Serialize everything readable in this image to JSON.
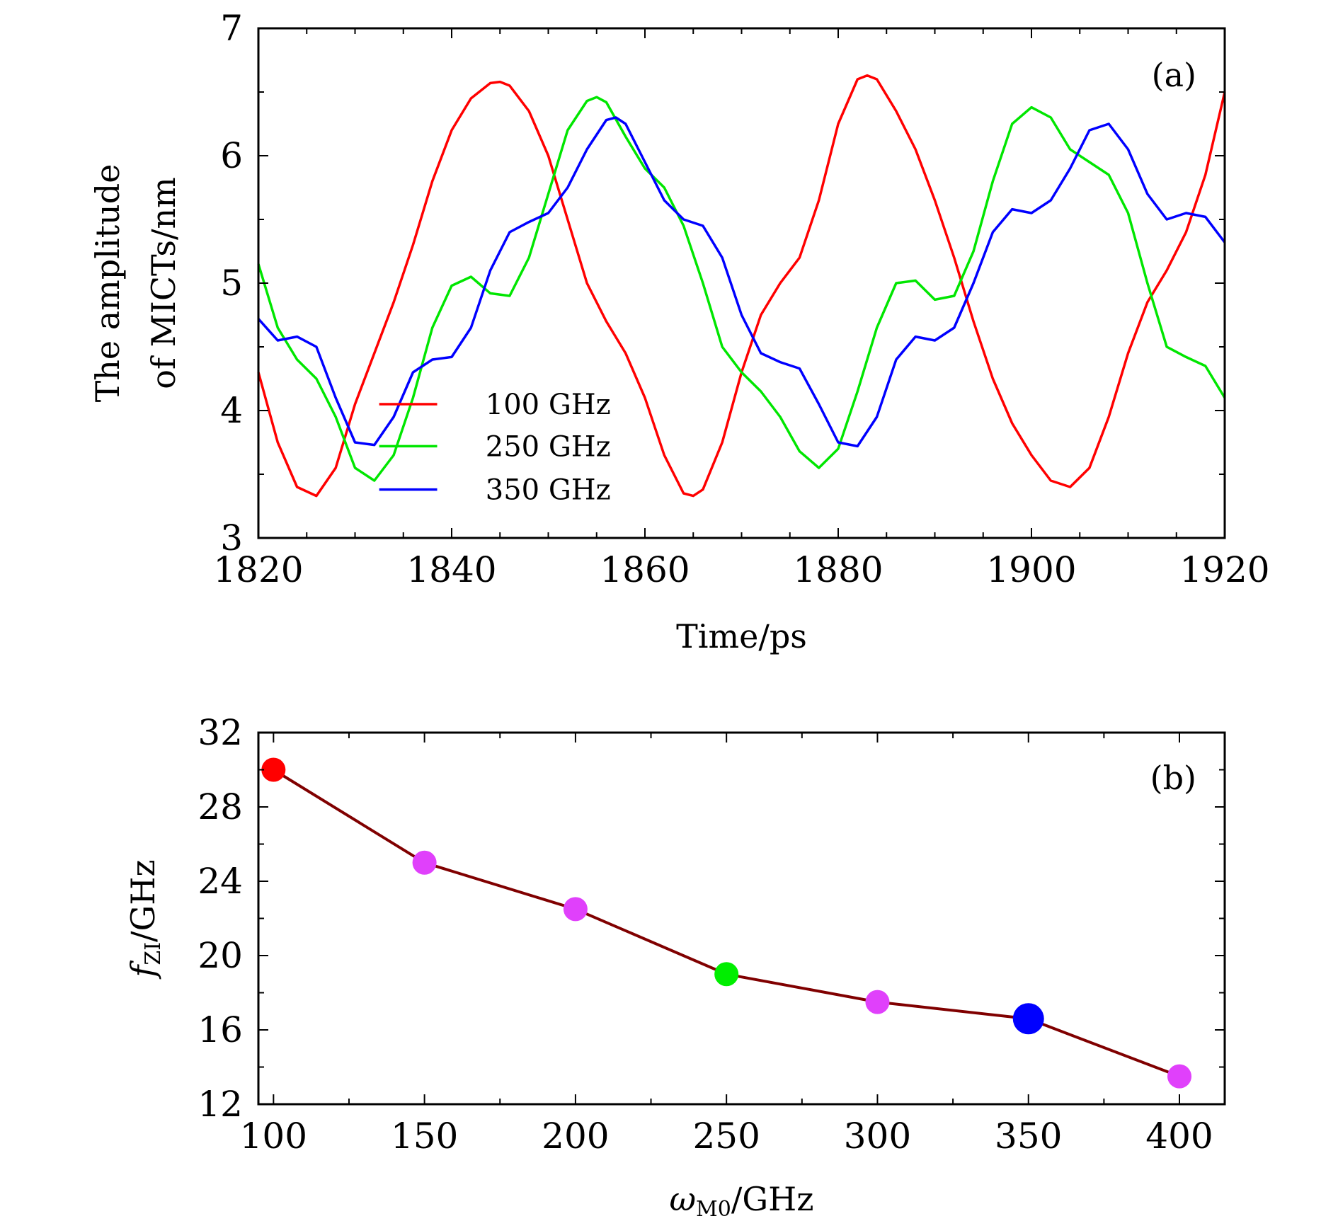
{
  "chart_data": [
    {
      "type": "line",
      "panel_label": "(a)",
      "xlabel": "Time/ps",
      "ylabel_line1": "The amplitude",
      "ylabel_line2": "of MICTs/nm",
      "xlim": [
        1820,
        1920
      ],
      "ylim": [
        3,
        7
      ],
      "xticks": [
        1820,
        1840,
        1860,
        1880,
        1900,
        1920
      ],
      "yticks": [
        3,
        4,
        5,
        6,
        7
      ],
      "legend_position": "center-left",
      "series": [
        {
          "name": "100 GHz",
          "color": "#ff0000",
          "x": [
            1820,
            1822,
            1824,
            1826,
            1828,
            1830,
            1832,
            1834,
            1836,
            1838,
            1840,
            1842,
            1844,
            1845,
            1846,
            1848,
            1850,
            1852,
            1854,
            1856,
            1858,
            1860,
            1862,
            1864,
            1865,
            1866,
            1868,
            1870,
            1872,
            1874,
            1876,
            1878,
            1880,
            1882,
            1883,
            1884,
            1886,
            1888,
            1890,
            1892,
            1894,
            1896,
            1898,
            1900,
            1902,
            1904,
            1906,
            1908,
            1910,
            1912,
            1914,
            1916,
            1918,
            1920
          ],
          "y": [
            4.3,
            3.75,
            3.4,
            3.33,
            3.55,
            4.05,
            4.45,
            4.85,
            5.3,
            5.8,
            6.2,
            6.45,
            6.57,
            6.58,
            6.55,
            6.35,
            6.0,
            5.5,
            5.0,
            4.7,
            4.45,
            4.1,
            3.65,
            3.35,
            3.33,
            3.38,
            3.75,
            4.3,
            4.75,
            5.0,
            5.2,
            5.65,
            6.25,
            6.6,
            6.63,
            6.6,
            6.35,
            6.05,
            5.65,
            5.2,
            4.7,
            4.25,
            3.9,
            3.65,
            3.45,
            3.4,
            3.55,
            3.95,
            4.45,
            4.85,
            5.1,
            5.4,
            5.85,
            6.5
          ]
        },
        {
          "name": "250 GHz",
          "color": "#00e600",
          "x": [
            1820,
            1822,
            1824,
            1826,
            1828,
            1830,
            1832,
            1834,
            1836,
            1838,
            1840,
            1842,
            1844,
            1846,
            1848,
            1850,
            1852,
            1854,
            1855,
            1856,
            1858,
            1860,
            1862,
            1864,
            1866,
            1868,
            1870,
            1872,
            1874,
            1876,
            1878,
            1880,
            1882,
            1884,
            1886,
            1888,
            1890,
            1892,
            1894,
            1896,
            1898,
            1900,
            1902,
            1904,
            1906,
            1908,
            1910,
            1912,
            1914,
            1916,
            1918,
            1920
          ],
          "y": [
            5.15,
            4.65,
            4.4,
            4.25,
            3.95,
            3.55,
            3.45,
            3.65,
            4.1,
            4.65,
            4.98,
            5.05,
            4.92,
            4.9,
            5.2,
            5.7,
            6.2,
            6.43,
            6.46,
            6.42,
            6.15,
            5.9,
            5.75,
            5.45,
            5.0,
            4.5,
            4.3,
            4.15,
            3.95,
            3.68,
            3.55,
            3.7,
            4.15,
            4.65,
            5.0,
            5.02,
            4.87,
            4.9,
            5.25,
            5.8,
            6.25,
            6.38,
            6.3,
            6.05,
            5.95,
            5.85,
            5.55,
            5.0,
            4.5,
            4.42,
            4.35,
            4.1
          ]
        },
        {
          "name": "350 GHz",
          "color": "#0000ff",
          "x": [
            1820,
            1822,
            1824,
            1826,
            1828,
            1830,
            1832,
            1834,
            1836,
            1838,
            1840,
            1842,
            1844,
            1846,
            1848,
            1850,
            1852,
            1854,
            1856,
            1857,
            1858,
            1860,
            1862,
            1864,
            1866,
            1868,
            1870,
            1872,
            1874,
            1876,
            1878,
            1880,
            1882,
            1884,
            1886,
            1888,
            1890,
            1892,
            1894,
            1896,
            1898,
            1900,
            1902,
            1904,
            1906,
            1908,
            1910,
            1912,
            1914,
            1916,
            1918,
            1920
          ],
          "y": [
            4.72,
            4.55,
            4.58,
            4.5,
            4.1,
            3.75,
            3.73,
            3.95,
            4.3,
            4.4,
            4.42,
            4.65,
            5.1,
            5.4,
            5.48,
            5.55,
            5.75,
            6.05,
            6.28,
            6.3,
            6.25,
            5.95,
            5.65,
            5.5,
            5.45,
            5.2,
            4.75,
            4.45,
            4.38,
            4.33,
            4.05,
            3.75,
            3.72,
            3.95,
            4.4,
            4.58,
            4.55,
            4.65,
            5.0,
            5.4,
            5.58,
            5.55,
            5.65,
            5.9,
            6.2,
            6.25,
            6.05,
            5.7,
            5.5,
            5.55,
            5.52,
            5.32
          ]
        }
      ]
    },
    {
      "type": "line",
      "panel_label": "(b)",
      "xlabel_symbol": "ω",
      "xlabel_sub": "M0",
      "xlabel_unit": "/GHz",
      "ylabel_symbol": "f",
      "ylabel_sub": "ZI",
      "ylabel_unit": "/GHz",
      "xlim": [
        95,
        415
      ],
      "ylim": [
        12,
        32
      ],
      "xticks": [
        100,
        150,
        200,
        250,
        300,
        350,
        400
      ],
      "yticks": [
        12,
        16,
        20,
        24,
        28,
        32
      ],
      "line_color": "#800000",
      "x": [
        100,
        150,
        200,
        250,
        300,
        350,
        400
      ],
      "y": [
        30,
        25,
        22.5,
        19,
        17.5,
        16.6,
        13.5
      ],
      "point_colors": [
        "#ff0000",
        "#e040fb",
        "#e040fb",
        "#00ee00",
        "#e040fb",
        "#0000ff",
        "#e040fb"
      ]
    }
  ]
}
